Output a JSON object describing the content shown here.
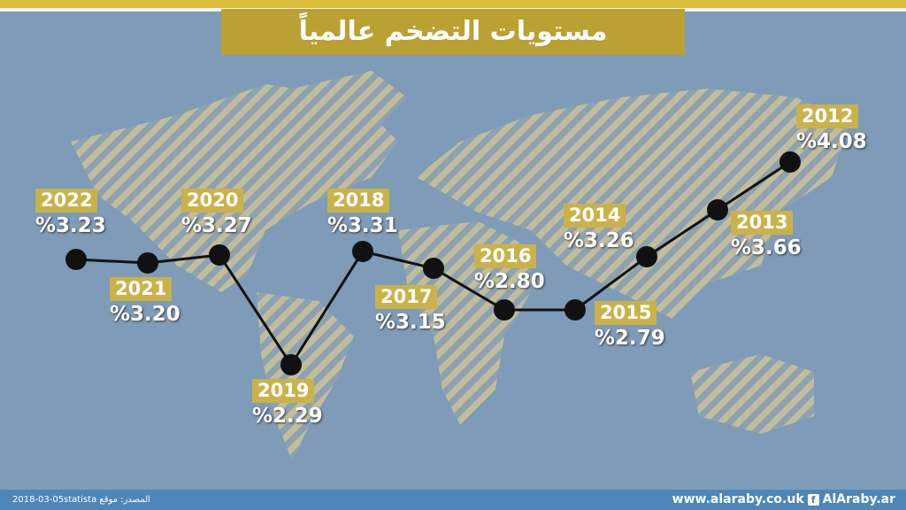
{
  "title": "مستويات التضخم عالمياً",
  "chart_data": {
    "type": "line",
    "title": "مستويات التضخم عالمياً",
    "categories": [
      "2022",
      "2021",
      "2020",
      "2019",
      "2018",
      "2017",
      "2016",
      "2015",
      "2014",
      "2013",
      "2012"
    ],
    "values": [
      3.23,
      3.2,
      3.27,
      2.29,
      3.31,
      3.15,
      2.8,
      2.79,
      3.26,
      3.66,
      4.08
    ],
    "value_labels": [
      "%3.23",
      "%3.20",
      "%3.27",
      "%2.29",
      "%3.31",
      "%3.15",
      "%2.80",
      "%2.79",
      "%3.26",
      "%3.66",
      "%4.08"
    ],
    "xlabel": "",
    "ylabel": "",
    "grid": false,
    "colors": {
      "line": "#111111",
      "label_bg": "#c9b24a",
      "background": "#7e9bb7"
    }
  },
  "footer": {
    "date": "2018-03-05",
    "source": "المصدر: موقع statista",
    "site": "www.alaraby.co.uk",
    "social_icon": "facebook-icon",
    "social": "AlAraby.ar"
  }
}
